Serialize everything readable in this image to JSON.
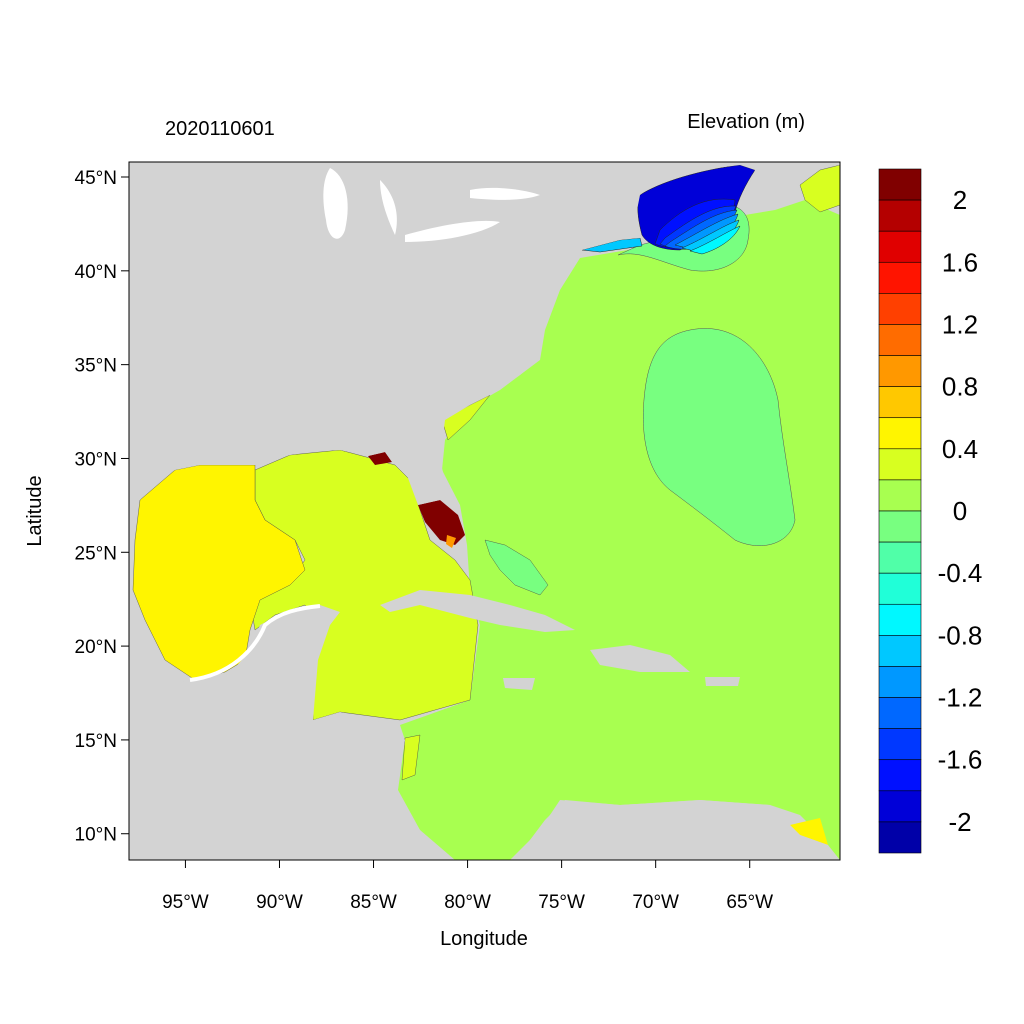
{
  "chart_data": {
    "type": "heatmap",
    "title_left": "2020110601",
    "title_right": "Elevation (m)",
    "xlabel": "Longitude",
    "ylabel": "Latitude",
    "xlim": [
      -98,
      -60.2
    ],
    "ylim": [
      8.6,
      45.8
    ],
    "x_ticks": [
      {
        "value": -95,
        "label": "95°W"
      },
      {
        "value": -90,
        "label": "90°W"
      },
      {
        "value": -85,
        "label": "85°W"
      },
      {
        "value": -80,
        "label": "80°W"
      },
      {
        "value": -75,
        "label": "75°W"
      },
      {
        "value": -70,
        "label": "70°W"
      },
      {
        "value": -65,
        "label": "65°W"
      }
    ],
    "y_ticks": [
      {
        "value": 45,
        "label": "45°N"
      },
      {
        "value": 40,
        "label": "40°N"
      },
      {
        "value": 35,
        "label": "35°N"
      },
      {
        "value": 30,
        "label": "30°N"
      },
      {
        "value": 25,
        "label": "25°N"
      },
      {
        "value": 20,
        "label": "20°N"
      },
      {
        "value": 15,
        "label": "15°N"
      },
      {
        "value": 10,
        "label": "10°N"
      }
    ],
    "colorbar": {
      "labels": [
        "2",
        "1.6",
        "1.2",
        "0.8",
        "0.4",
        "0",
        "-0.4",
        "-0.8",
        "-1.2",
        "-1.6",
        "-2"
      ],
      "colors": [
        "#800000",
        "#b40000",
        "#e00000",
        "#ff1400",
        "#ff4000",
        "#ff6c00",
        "#ff9800",
        "#ffc800",
        "#fff500",
        "#d8ff20",
        "#a8ff50",
        "#78ff80",
        "#50ffa8",
        "#20ffd8",
        "#00f8ff",
        "#00c8ff",
        "#0098ff",
        "#0068ff",
        "#0038ff",
        "#0010ff",
        "#0000d8",
        "#0000a8"
      ]
    },
    "land_color": "#d3d3d3"
  }
}
